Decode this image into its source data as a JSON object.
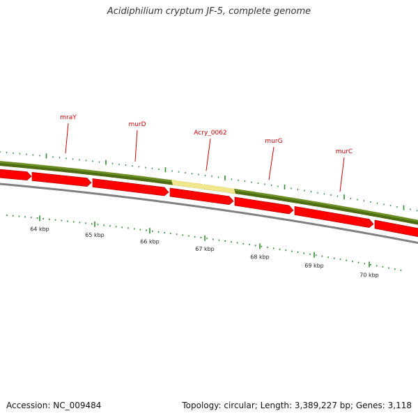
{
  "title": "Acidiphilium cryptum JF-5, complete genome",
  "footer": {
    "accession": "Accession: NC_009484",
    "stats": "Topology: circular; Length: 3,389,227 bp; Genes: 3,118"
  },
  "gene_labels": [
    "mraY",
    "murD",
    "Acry_0062",
    "murG",
    "murC"
  ],
  "kbp_labels": [
    "64 kbp",
    "65 kbp",
    "66 kbp",
    "67 kbp",
    "68 kbp",
    "69 kbp",
    "70 kbp"
  ],
  "colors": {
    "gene_band": "#6b8e23",
    "highlight": "#f0e68c",
    "forward_genes": "#ff0000",
    "backbone": "#808080",
    "ticks": "#2e8b2e",
    "labels": "#cc0000"
  }
}
